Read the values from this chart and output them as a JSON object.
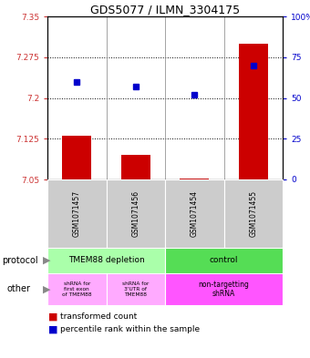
{
  "title": "GDS5077 / ILMN_3304175",
  "samples": [
    "GSM1071457",
    "GSM1071456",
    "GSM1071454",
    "GSM1071455"
  ],
  "bar_values": [
    7.13,
    7.095,
    7.052,
    7.3
  ],
  "bar_base": 7.05,
  "blue_values": [
    60,
    57,
    52,
    70
  ],
  "ylim_left": [
    7.05,
    7.35
  ],
  "ylim_right": [
    0,
    100
  ],
  "yticks_left": [
    7.05,
    7.125,
    7.2,
    7.275,
    7.35
  ],
  "ytick_labels_left": [
    "7.05",
    "7.125",
    "7.2",
    "7.275",
    "7.35"
  ],
  "yticks_right": [
    0,
    25,
    50,
    75,
    100
  ],
  "ytick_labels_right": [
    "0",
    "25",
    "50",
    "75",
    "100%"
  ],
  "hlines": [
    7.125,
    7.2,
    7.275
  ],
  "bar_color": "#cc0000",
  "blue_color": "#0000cc",
  "protocol_labels": [
    "TMEM88 depletion",
    "control"
  ],
  "protocol_color_left": "#aaffaa",
  "protocol_color_right": "#55dd55",
  "other_label1": "shRNA for\nfirst exon\nof TMEM88",
  "other_label2": "shRNA for\n3'UTR of\nTMEM88",
  "other_label3": "non-targetting\nshRNA",
  "other_color_left": "#ffaaff",
  "other_color_right": "#ff55ff",
  "legend_bar_label": "transformed count",
  "legend_blue_label": "percentile rank within the sample",
  "protocol_row_label": "protocol",
  "other_row_label": "other",
  "bg_color": "#ffffff",
  "plot_bg_color": "#ffffff",
  "sample_bg_color": "#cccccc"
}
